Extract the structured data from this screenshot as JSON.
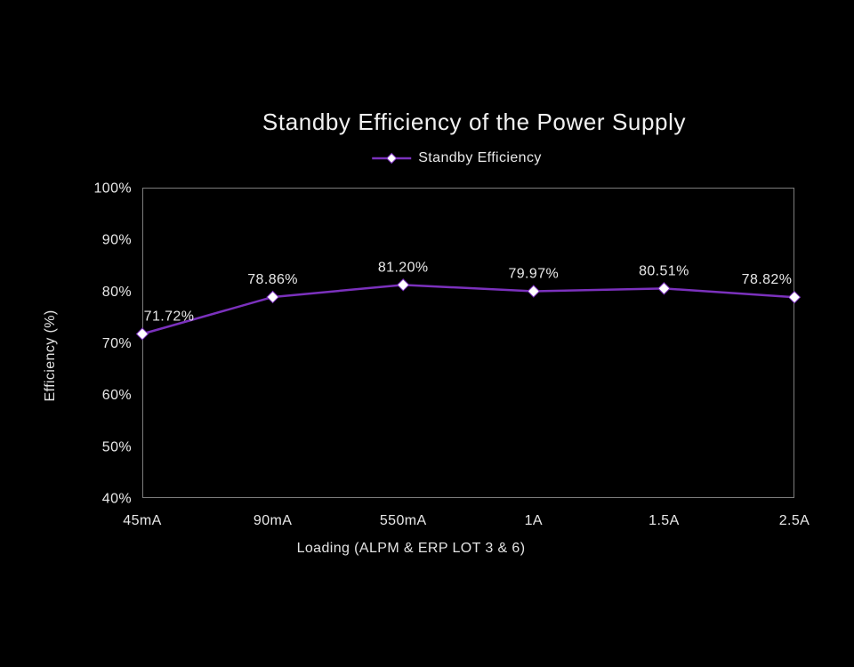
{
  "page": {
    "background": "#000000"
  },
  "chart_data": {
    "type": "line",
    "title": "Standby Efficiency of the Power Supply",
    "xlabel": "Loading (ALPM & ERP LOT 3 & 6)",
    "ylabel": "Efficiency (%)",
    "categories": [
      "45mA",
      "90mA",
      "550mA",
      "1A",
      "1.5A",
      "2.5A"
    ],
    "series": [
      {
        "name": "Standby Efficiency",
        "values": [
          71.72,
          78.86,
          81.2,
          79.97,
          80.51,
          78.82
        ]
      }
    ],
    "data_labels": [
      "71.72%",
      "78.86%",
      "81.20%",
      "79.97%",
      "80.51%",
      "78.82%"
    ],
    "ylim": [
      40,
      100
    ],
    "ytick_step": 10,
    "ytick_labels": [
      "40%",
      "50%",
      "60%",
      "70%",
      "80%",
      "90%",
      "100%"
    ],
    "grid": false,
    "legend_position": "top",
    "marker_shape": "diamond",
    "colors": {
      "background": "#000000",
      "line": "#7b31bd",
      "marker_fill": "#ffffff",
      "text": "#e9e9e9",
      "title_text": "#f2f2f2",
      "plot_border": "#7d7d7d"
    }
  }
}
